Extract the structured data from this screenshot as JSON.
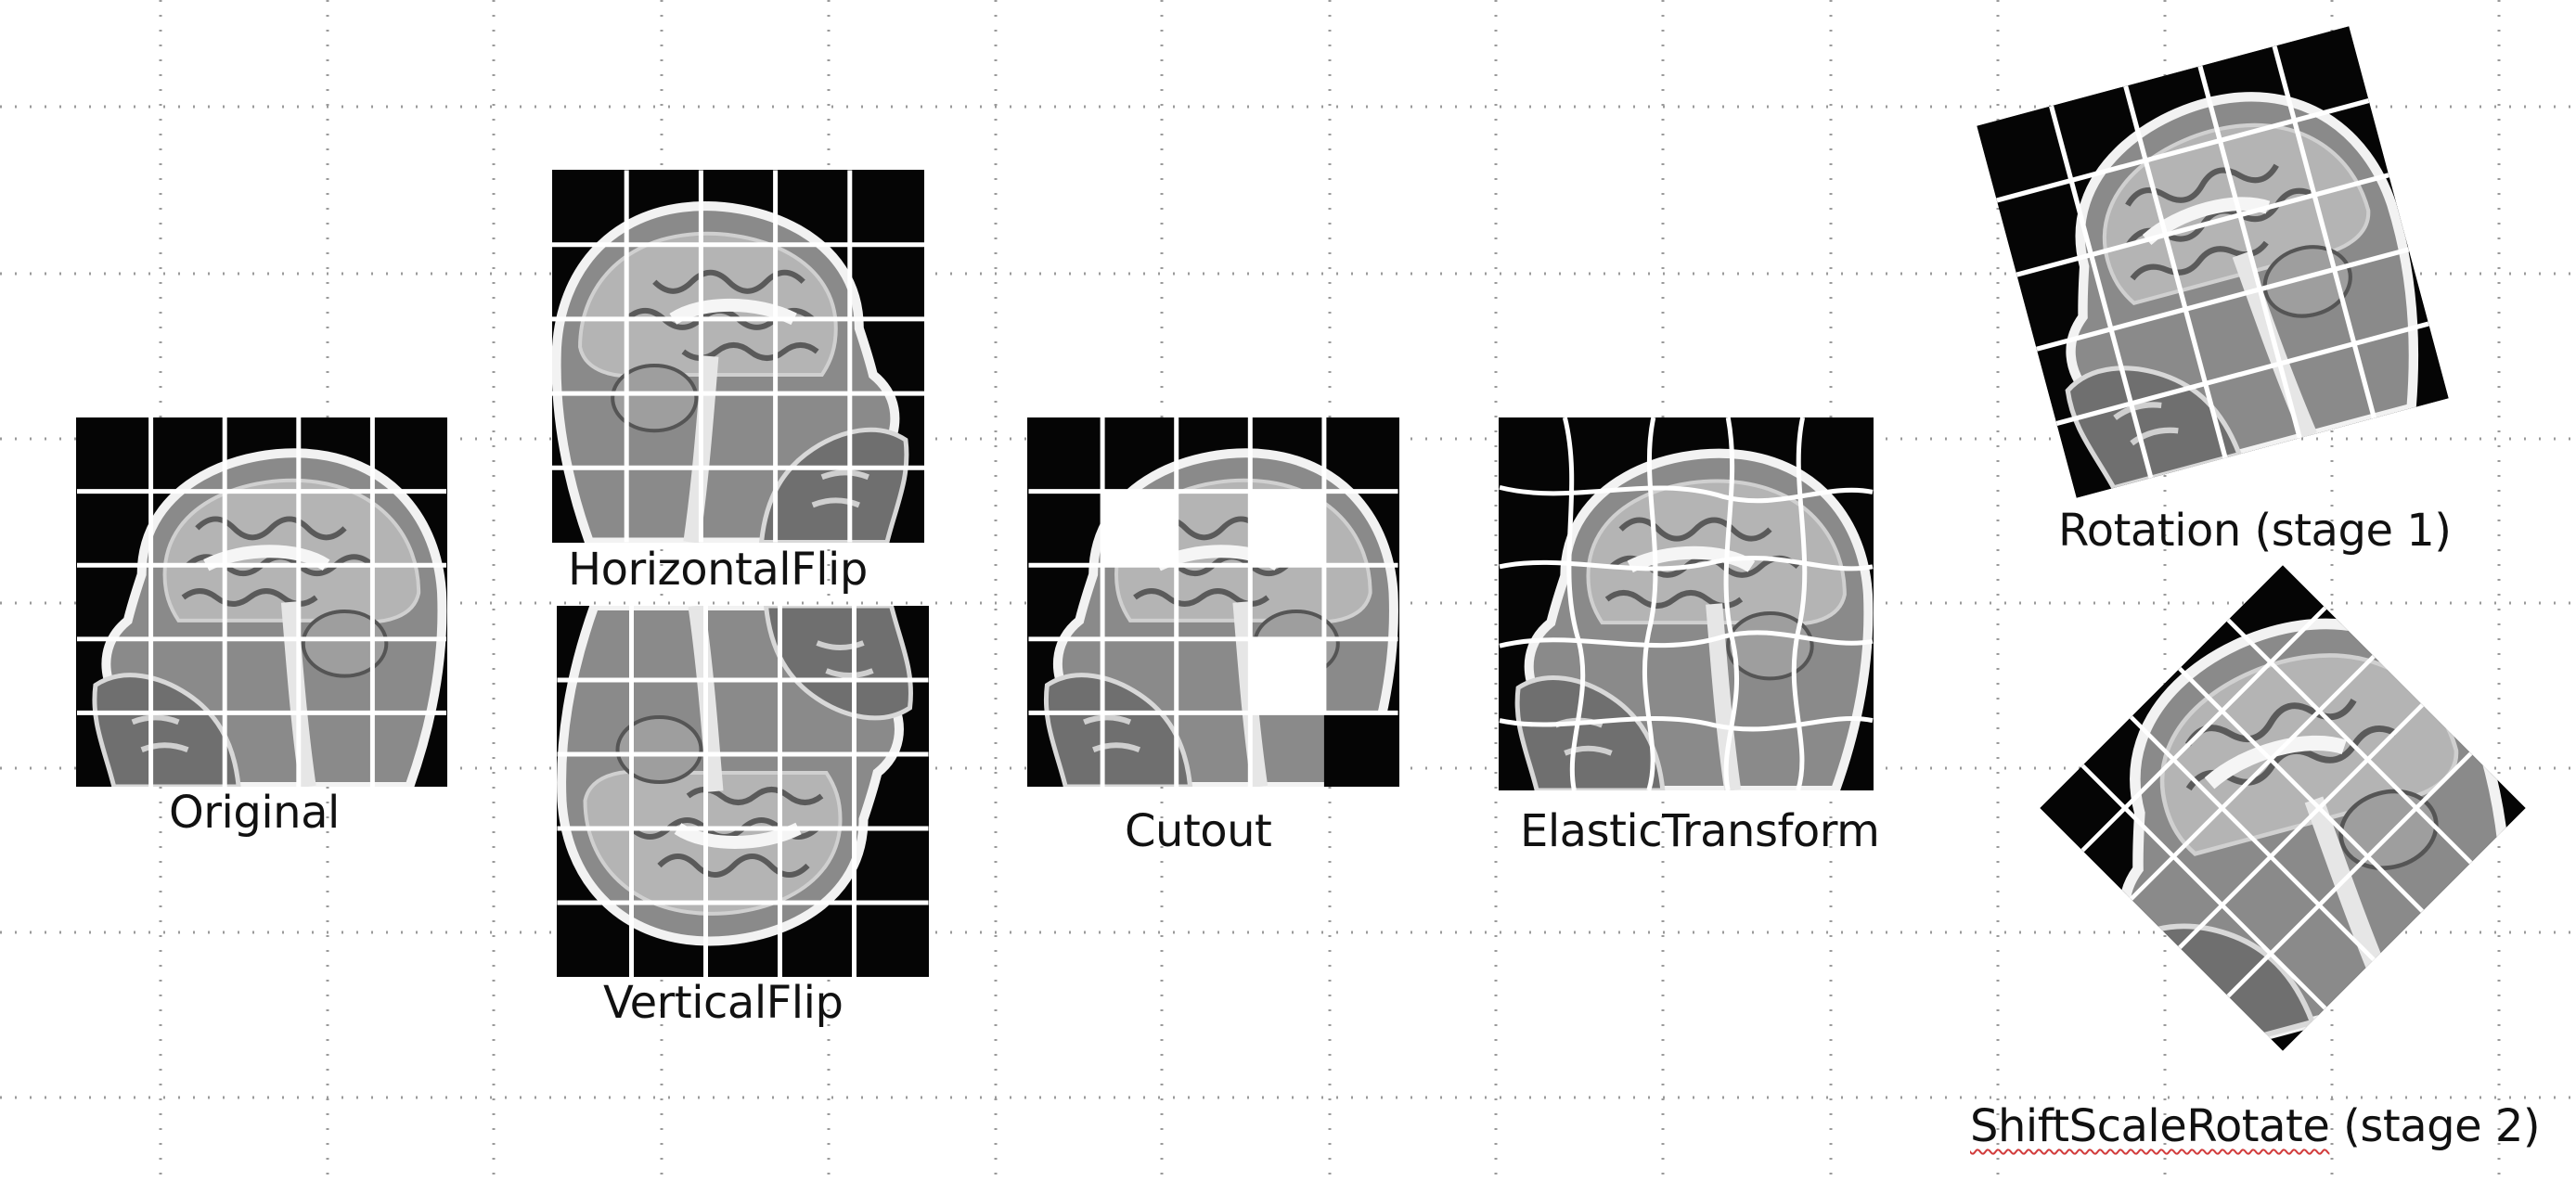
{
  "labels": {
    "original": "Original",
    "horizontal_flip": "HorizontalFlip",
    "vertical_flip": "VerticalFlip",
    "cutout": "Cutout",
    "elastic_transform": "ElasticTransform",
    "rotation": "Rotation (stage 1)",
    "shift_scale_rotate_word": "ShiftScaleRotate",
    "shift_scale_rotate_stage": " (stage 2)"
  },
  "colors": {
    "panel_bg": "#050505",
    "grid_line": "#ffffff",
    "dotted_grid": "#9a9a9a",
    "spellcheck": "#d23c3c"
  },
  "icons": {
    "panel_image": "mri-sagittal-head-icon"
  }
}
